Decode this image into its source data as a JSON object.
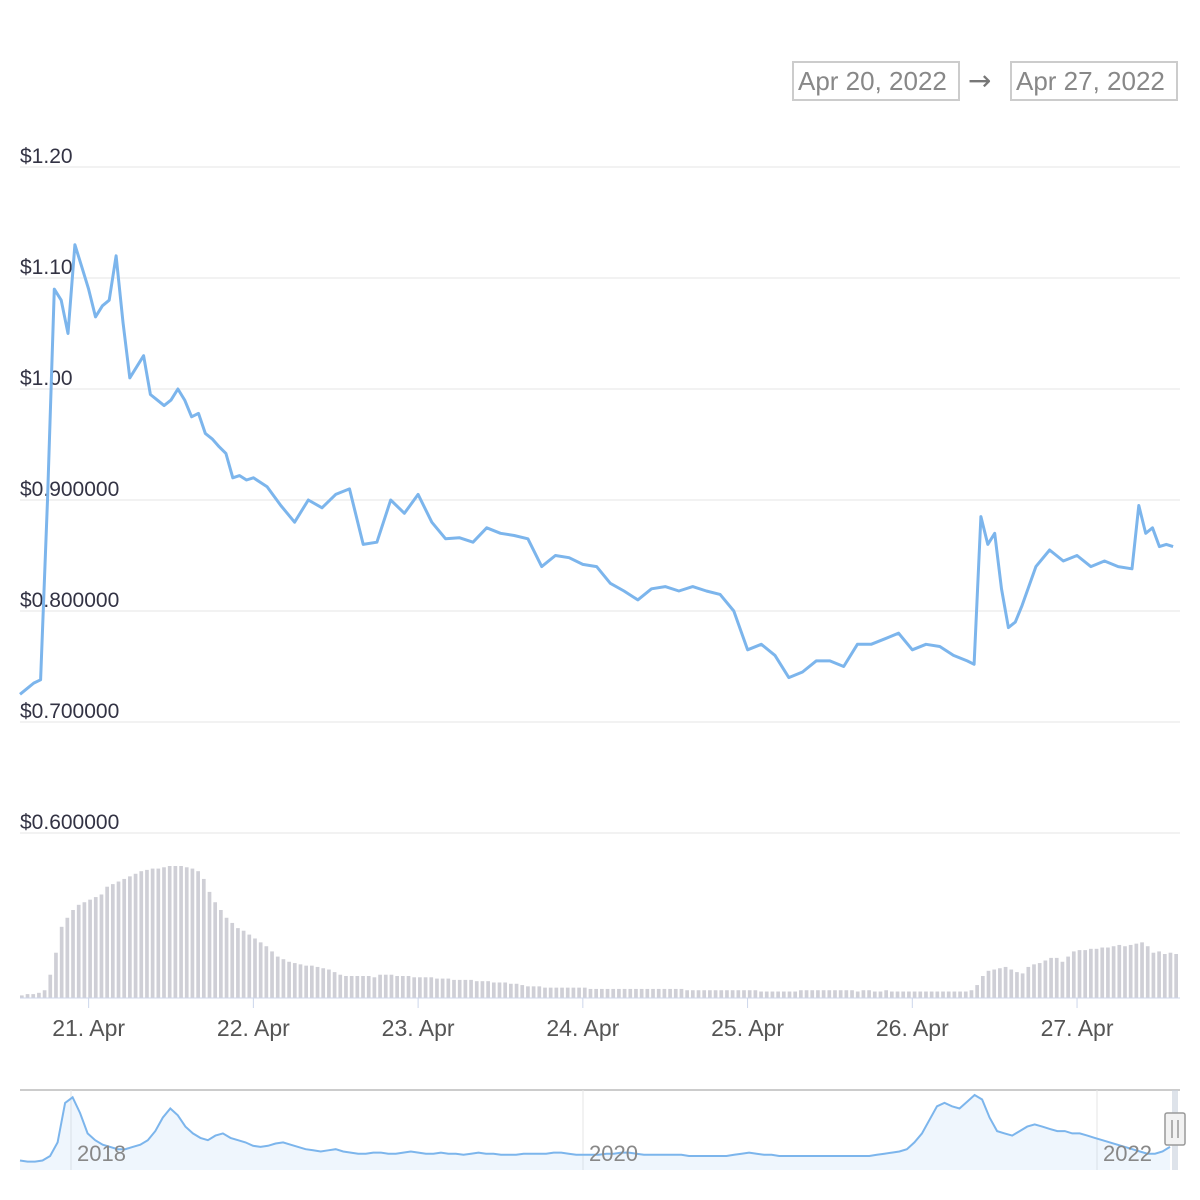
{
  "range_selector": {
    "from": "Apr 20, 2022",
    "arrow": "→",
    "to": "Apr 27, 2022"
  },
  "chart_data": {
    "type": "line",
    "series": [
      {
        "color": "#7cb5ec",
        "x": [
          "2022-04-20T14:00",
          "2022-04-20T15:00",
          "2022-04-20T16:00",
          "2022-04-20T17:00",
          "2022-04-20T18:00",
          "2022-04-20T19:00",
          "2022-04-20T20:00",
          "2022-04-20T21:00",
          "2022-04-20T22:00",
          "2022-04-20T23:00",
          "2022-04-21T00:00",
          "2022-04-21T01:00",
          "2022-04-21T02:00",
          "2022-04-21T03:00",
          "2022-04-21T04:00",
          "2022-04-21T05:00",
          "2022-04-21T06:00",
          "2022-04-21T07:00",
          "2022-04-21T08:00",
          "2022-04-21T09:00",
          "2022-04-21T10:00",
          "2022-04-21T11:00",
          "2022-04-21T12:00",
          "2022-04-21T13:00",
          "2022-04-21T14:00",
          "2022-04-21T15:00",
          "2022-04-21T16:00",
          "2022-04-21T17:00",
          "2022-04-21T18:00",
          "2022-04-21T19:00",
          "2022-04-21T20:00",
          "2022-04-21T21:00",
          "2022-04-21T22:00",
          "2022-04-21T23:00",
          "2022-04-22T00:00",
          "2022-04-22T02:00",
          "2022-04-22T04:00",
          "2022-04-22T06:00",
          "2022-04-22T08:00",
          "2022-04-22T10:00",
          "2022-04-22T12:00",
          "2022-04-22T14:00",
          "2022-04-22T16:00",
          "2022-04-22T18:00",
          "2022-04-22T20:00",
          "2022-04-22T22:00",
          "2022-04-23T00:00",
          "2022-04-23T02:00",
          "2022-04-23T04:00",
          "2022-04-23T06:00",
          "2022-04-23T08:00",
          "2022-04-23T10:00",
          "2022-04-23T12:00",
          "2022-04-23T14:00",
          "2022-04-23T16:00",
          "2022-04-23T18:00",
          "2022-04-23T20:00",
          "2022-04-23T22:00",
          "2022-04-24T00:00",
          "2022-04-24T02:00",
          "2022-04-24T04:00",
          "2022-04-24T06:00",
          "2022-04-24T08:00",
          "2022-04-24T10:00",
          "2022-04-24T12:00",
          "2022-04-24T14:00",
          "2022-04-24T16:00",
          "2022-04-24T18:00",
          "2022-04-24T20:00",
          "2022-04-24T22:00",
          "2022-04-25T00:00",
          "2022-04-25T02:00",
          "2022-04-25T04:00",
          "2022-04-25T06:00",
          "2022-04-25T08:00",
          "2022-04-25T10:00",
          "2022-04-25T12:00",
          "2022-04-25T14:00",
          "2022-04-25T16:00",
          "2022-04-25T18:00",
          "2022-04-25T20:00",
          "2022-04-25T22:00",
          "2022-04-26T00:00",
          "2022-04-26T02:00",
          "2022-04-26T04:00",
          "2022-04-26T06:00",
          "2022-04-26T08:00",
          "2022-04-26T09:00",
          "2022-04-26T10:00",
          "2022-04-26T11:00",
          "2022-04-26T12:00",
          "2022-04-26T13:00",
          "2022-04-26T14:00",
          "2022-04-26T15:00",
          "2022-04-26T16:00",
          "2022-04-26T18:00",
          "2022-04-26T20:00",
          "2022-04-26T22:00",
          "2022-04-27T00:00",
          "2022-04-27T02:00",
          "2022-04-27T04:00",
          "2022-04-27T06:00",
          "2022-04-27T08:00",
          "2022-04-27T09:00",
          "2022-04-27T10:00",
          "2022-04-27T11:00",
          "2022-04-27T12:00",
          "2022-04-27T13:00",
          "2022-04-27T14:00"
        ],
        "values": [
          0.725,
          0.73,
          0.735,
          0.738,
          0.9,
          1.09,
          1.08,
          1.05,
          1.13,
          1.11,
          1.09,
          1.065,
          1.075,
          1.08,
          1.12,
          1.06,
          1.01,
          1.02,
          1.03,
          0.995,
          0.99,
          0.985,
          0.99,
          1.0,
          0.99,
          0.975,
          0.978,
          0.96,
          0.955,
          0.948,
          0.942,
          0.92,
          0.922,
          0.918,
          0.92,
          0.912,
          0.895,
          0.88,
          0.9,
          0.893,
          0.905,
          0.91,
          0.86,
          0.862,
          0.9,
          0.888,
          0.905,
          0.88,
          0.865,
          0.866,
          0.862,
          0.875,
          0.87,
          0.868,
          0.865,
          0.84,
          0.85,
          0.848,
          0.842,
          0.84,
          0.825,
          0.818,
          0.81,
          0.82,
          0.822,
          0.818,
          0.822,
          0.818,
          0.815,
          0.8,
          0.765,
          0.77,
          0.76,
          0.74,
          0.745,
          0.755,
          0.755,
          0.75,
          0.77,
          0.77,
          0.775,
          0.78,
          0.765,
          0.77,
          0.768,
          0.76,
          0.755,
          0.752,
          0.885,
          0.86,
          0.87,
          0.82,
          0.785,
          0.79,
          0.805,
          0.84,
          0.855,
          0.845,
          0.85,
          0.84,
          0.845,
          0.84,
          0.838,
          0.895,
          0.87,
          0.875,
          0.858,
          0.86,
          0.858
        ]
      }
    ],
    "y_tick_labels": [
      "$1.20",
      "$1.10",
      "$1.00",
      "$0.900000",
      "$0.800000",
      "$0.700000",
      "$0.600000"
    ],
    "y_ticks": [
      1.2,
      1.1,
      1.0,
      0.9,
      0.8,
      0.7,
      0.6
    ],
    "ylim": [
      0.6,
      1.2
    ],
    "x_tick_labels": [
      "21. Apr",
      "22. Apr",
      "23. Apr",
      "24. Apr",
      "25. Apr",
      "26. Apr",
      "27. Apr"
    ],
    "x_ticks": [
      "2022-04-21",
      "2022-04-22",
      "2022-04-23",
      "2022-04-24",
      "2022-04-25",
      "2022-04-26",
      "2022-04-27"
    ],
    "xlim": [
      "2022-04-20T14:00",
      "2022-04-27T15:00"
    ],
    "grid": true,
    "volume_bar_color": "#cfcfd6",
    "volume_values": [
      2,
      3,
      3,
      4,
      6,
      18,
      35,
      55,
      62,
      68,
      72,
      74,
      76,
      78,
      80,
      86,
      88,
      90,
      92,
      94,
      96,
      98,
      99,
      100,
      100,
      101,
      102,
      102,
      102,
      101,
      100,
      98,
      92,
      82,
      74,
      68,
      62,
      58,
      54,
      52,
      49,
      46,
      43,
      40,
      36,
      32,
      30,
      28,
      27,
      26,
      25,
      25,
      24,
      23,
      22,
      20,
      18,
      17,
      17,
      17,
      17,
      17,
      16,
      18,
      18,
      18,
      17,
      17,
      17,
      16,
      16,
      16,
      16,
      15,
      15,
      15,
      14,
      14,
      14,
      14,
      13,
      13,
      13,
      12,
      12,
      12,
      11,
      11,
      10,
      9,
      9,
      9,
      8,
      8,
      8,
      8,
      8,
      8,
      8,
      8,
      7,
      7,
      7,
      7,
      7,
      7,
      7,
      7,
      7,
      7,
      7,
      7,
      7,
      7,
      7,
      7,
      7,
      6,
      6,
      6,
      6,
      6,
      6,
      6,
      6,
      6,
      6,
      6,
      6,
      6,
      5,
      5,
      5,
      5,
      5,
      5,
      5,
      6,
      6,
      6,
      6,
      6,
      6,
      6,
      6,
      6,
      6,
      5,
      6,
      6,
      5,
      5,
      6,
      5,
      5,
      5,
      5,
      5,
      5,
      5,
      5,
      5,
      5,
      5,
      5,
      5,
      5,
      6,
      10,
      17,
      21,
      22,
      23,
      24,
      22,
      20,
      19,
      24,
      26,
      27,
      29,
      31,
      31,
      28,
      32,
      36,
      37,
      37,
      38,
      38,
      39,
      39,
      40,
      41,
      40,
      41,
      42,
      43,
      40,
      35,
      36,
      34,
      35,
      34
    ],
    "navigator": {
      "x_tick_labels": [
        "2018",
        "2020",
        "2022"
      ],
      "series_color": "#7cb5ec",
      "series_values": [
        4,
        3,
        3,
        4,
        8,
        20,
        55,
        60,
        46,
        28,
        22,
        18,
        16,
        14,
        14,
        16,
        18,
        22,
        30,
        42,
        50,
        44,
        34,
        28,
        24,
        22,
        26,
        28,
        24,
        22,
        20,
        17,
        16,
        17,
        19,
        20,
        18,
        16,
        14,
        13,
        12,
        13,
        14,
        12,
        11,
        10,
        10,
        11,
        11,
        10,
        10,
        11,
        12,
        11,
        10,
        10,
        11,
        10,
        10,
        9,
        10,
        11,
        10,
        10,
        9,
        9,
        9,
        10,
        10,
        10,
        10,
        11,
        11,
        10,
        9,
        9,
        9,
        9,
        10,
        10,
        11,
        11,
        10,
        9,
        9,
        9,
        9,
        9,
        9,
        8,
        8,
        8,
        8,
        8,
        8,
        9,
        10,
        11,
        10,
        9,
        9,
        8,
        8,
        8,
        8,
        8,
        8,
        8,
        8,
        8,
        8,
        8,
        8,
        8,
        9,
        10,
        11,
        12,
        14,
        20,
        28,
        40,
        52,
        55,
        52,
        50,
        56,
        62,
        58,
        42,
        30,
        28,
        26,
        30,
        34,
        36,
        34,
        32,
        30,
        30,
        28,
        28,
        26,
        24,
        22,
        20,
        18,
        16,
        14,
        12,
        10,
        10,
        12,
        16
      ]
    }
  }
}
